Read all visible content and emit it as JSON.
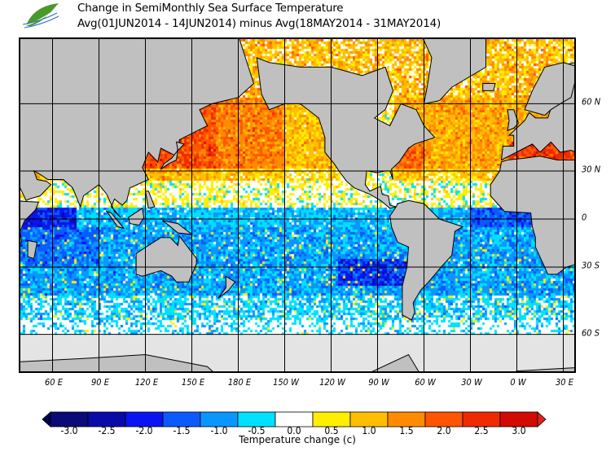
{
  "header": {
    "title": "Change in SemiMonthly Sea Surface Temperature",
    "subtitle": "Avg(01JUN2014 - 14JUN2014) minus Avg(18MAY2014 - 31MAY2014)"
  },
  "map": {
    "projection": "mercator",
    "lon_labels": [
      "60 E",
      "90 E",
      "120 E",
      "150 E",
      "180 E",
      "150 W",
      "120 W",
      "90 W",
      "60 W",
      "30 W",
      "0 W",
      "30 E"
    ],
    "lat_labels": [
      "60 N",
      "30 N",
      "0",
      "30 S",
      "60 S"
    ],
    "land_color": "#c0c0c0",
    "ice_color": "#e4e4e4"
  },
  "colorbar": {
    "title": "Temperature change  (c)",
    "tick_labels": [
      "-3.0",
      "-2.5",
      "-2.0",
      "-1.5",
      "-1.0",
      "-0.5",
      "0.0",
      "0.5",
      "1.0",
      "1.5",
      "2.0",
      "2.5",
      "3.0"
    ],
    "colors": [
      "#0a0a78",
      "#0a0aa8",
      "#0a14f0",
      "#0a5aff",
      "#0a96ff",
      "#00e1ff",
      "#ffffff",
      "#ffee00",
      "#ffbe00",
      "#ff8c00",
      "#ff5500",
      "#f02a00",
      "#d20a00"
    ],
    "extends": "both"
  }
}
